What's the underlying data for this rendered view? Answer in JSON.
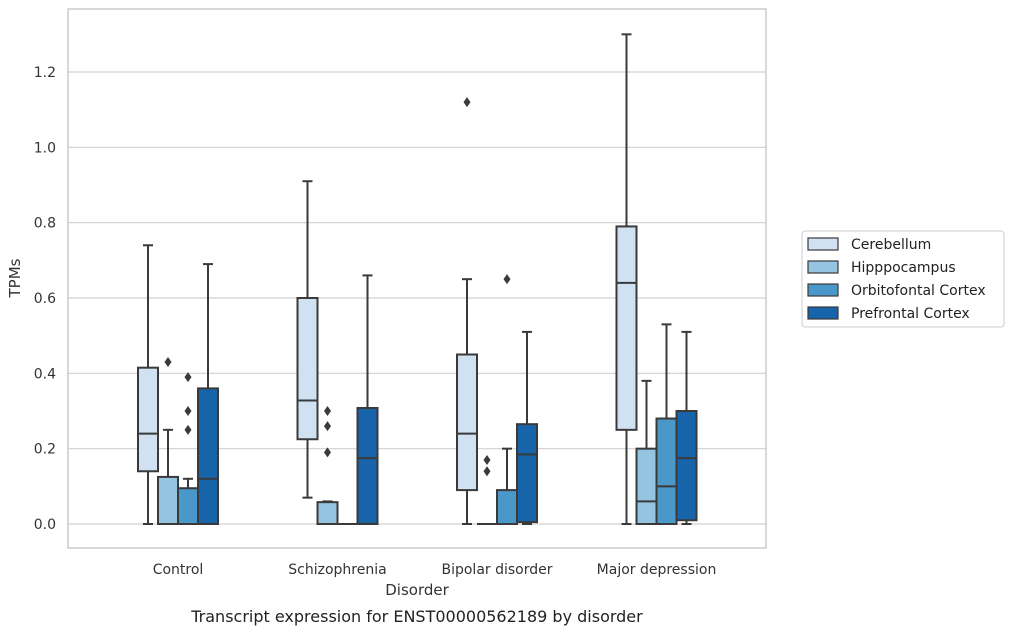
{
  "chart_data": {
    "type": "box",
    "xlabel": "Disorder",
    "ylabel": "TPMs",
    "caption": "Transcript expression for ENST00000562189 by disorder",
    "ylim": [
      -0.065,
      1.33
    ],
    "yticks": [
      "0.0",
      "0.2",
      "0.4",
      "0.6",
      "0.8",
      "1.0",
      "1.2"
    ],
    "grid": true,
    "legend_position": "right",
    "categories": [
      "Control",
      "Schizophrenia",
      "Bipolar disorder",
      "Major depression"
    ],
    "series": [
      {
        "name": "Cerebellum",
        "color": "#d0e1f2",
        "boxes": [
          {
            "whislo": 0.0,
            "q1": 0.14,
            "med": 0.24,
            "q3": 0.415,
            "whishi": 0.74,
            "fliers": []
          },
          {
            "whislo": 0.07,
            "q1": 0.225,
            "med": 0.328,
            "q3": 0.6,
            "whishi": 0.91,
            "fliers": []
          },
          {
            "whislo": 0.0,
            "q1": 0.09,
            "med": 0.24,
            "q3": 0.45,
            "whishi": 0.65,
            "fliers": [
              1.12
            ]
          },
          {
            "whislo": 0.0,
            "q1": 0.25,
            "med": 0.64,
            "q3": 0.79,
            "whishi": 1.3,
            "fliers": []
          }
        ]
      },
      {
        "name": "Hipppocampus",
        "color": "#94c4df",
        "boxes": [
          {
            "whislo": 0.0,
            "q1": 0.0,
            "med": 0.0,
            "q3": 0.125,
            "whishi": 0.25,
            "fliers": [
              0.43
            ]
          },
          {
            "whislo": 0.0,
            "q1": 0.0,
            "med": 0.0,
            "q3": 0.058,
            "whishi": 0.06,
            "fliers": [
              0.3,
              0.26,
              0.19
            ]
          },
          {
            "whislo": 0.0,
            "q1": 0.0,
            "med": 0.0,
            "q3": 0.0,
            "whishi": 0.0,
            "fliers": [
              0.17,
              0.14
            ]
          },
          {
            "whislo": 0.0,
            "q1": 0.0,
            "med": 0.06,
            "q3": 0.2,
            "whishi": 0.38,
            "fliers": []
          }
        ]
      },
      {
        "name": "Orbitofontal Cortex",
        "color": "#4a98c9",
        "boxes": [
          {
            "whislo": 0.0,
            "q1": 0.0,
            "med": 0.0,
            "q3": 0.095,
            "whishi": 0.12,
            "fliers": [
              0.39,
              0.3,
              0.25
            ]
          },
          {
            "whislo": 0.0,
            "q1": 0.0,
            "med": 0.0,
            "q3": 0.0,
            "whishi": 0.0,
            "fliers": []
          },
          {
            "whislo": 0.0,
            "q1": 0.0,
            "med": 0.0,
            "q3": 0.09,
            "whishi": 0.2,
            "fliers": [
              0.65
            ]
          },
          {
            "whislo": 0.0,
            "q1": 0.0,
            "med": 0.1,
            "q3": 0.28,
            "whishi": 0.53,
            "fliers": []
          }
        ]
      },
      {
        "name": "Prefrontal Cortex",
        "color": "#1764ab",
        "boxes": [
          {
            "whislo": 0.0,
            "q1": 0.0,
            "med": 0.12,
            "q3": 0.36,
            "whishi": 0.69,
            "fliers": []
          },
          {
            "whislo": 0.0,
            "q1": 0.0,
            "med": 0.175,
            "q3": 0.308,
            "whishi": 0.66,
            "fliers": []
          },
          {
            "whislo": 0.0,
            "q1": 0.005,
            "med": 0.185,
            "q3": 0.265,
            "whishi": 0.51,
            "fliers": []
          },
          {
            "whislo": 0.0,
            "q1": 0.01,
            "med": 0.175,
            "q3": 0.3,
            "whishi": 0.51,
            "fliers": []
          }
        ]
      }
    ]
  }
}
